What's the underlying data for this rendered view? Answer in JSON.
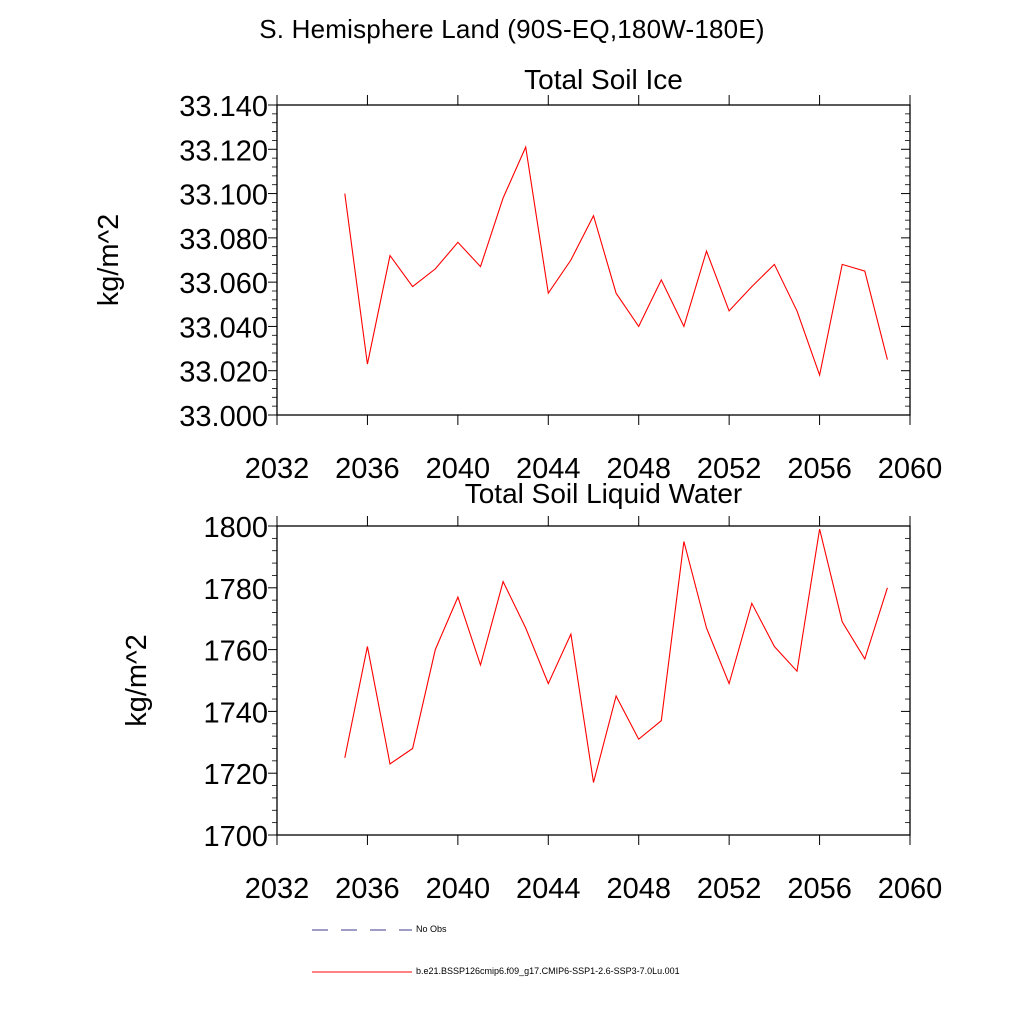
{
  "header": {
    "title": "S. Hemisphere Land (90S-EQ,180W-180E)"
  },
  "colors": {
    "series": "#ff0000",
    "obs": "#3b3b8f",
    "axis": "#000000"
  },
  "chart_data": [
    {
      "type": "line",
      "title": "Total Soil Ice",
      "ylabel": "kg/m^2",
      "xlabel": "",
      "xlim": [
        2032,
        2060
      ],
      "ylim": [
        33.0,
        33.14
      ],
      "xticks": [
        2032,
        2036,
        2040,
        2044,
        2048,
        2052,
        2056,
        2060
      ],
      "yticks": [
        33.0,
        33.02,
        33.04,
        33.06,
        33.08,
        33.1,
        33.12,
        33.14
      ],
      "ytick_labels": [
        "33.000",
        "33.020",
        "33.040",
        "33.060",
        "33.080",
        "33.100",
        "33.120",
        "33.140"
      ],
      "grid": false,
      "series": [
        {
          "name": "b.e21.BSSP126cmip6.f09_g17.CMIP6-SSP1-2.6-SSP3-7.0Lu.001",
          "color": "#ff0000",
          "x": [
            2035,
            2036,
            2037,
            2038,
            2039,
            2040,
            2041,
            2042,
            2043,
            2044,
            2045,
            2046,
            2047,
            2048,
            2049,
            2050,
            2051,
            2052,
            2053,
            2054,
            2055,
            2056,
            2057,
            2058,
            2059
          ],
          "values": [
            33.1,
            33.023,
            33.072,
            33.058,
            33.066,
            33.078,
            33.067,
            33.098,
            33.121,
            33.055,
            33.07,
            33.09,
            33.055,
            33.04,
            33.061,
            33.04,
            33.074,
            33.047,
            33.058,
            33.068,
            33.047,
            33.018,
            33.068,
            33.065,
            33.025
          ]
        }
      ]
    },
    {
      "type": "line",
      "title": "Total Soil Liquid Water",
      "ylabel": "kg/m^2",
      "xlabel": "",
      "xlim": [
        2032,
        2060
      ],
      "ylim": [
        1700,
        1800
      ],
      "xticks": [
        2032,
        2036,
        2040,
        2044,
        2048,
        2052,
        2056,
        2060
      ],
      "yticks": [
        1700,
        1720,
        1740,
        1760,
        1780,
        1800
      ],
      "ytick_labels": [
        "1700",
        "1720",
        "1740",
        "1760",
        "1780",
        "1800"
      ],
      "grid": false,
      "series": [
        {
          "name": "b.e21.BSSP126cmip6.f09_g17.CMIP6-SSP1-2.6-SSP3-7.0Lu.001",
          "color": "#ff0000",
          "x": [
            2035,
            2036,
            2037,
            2038,
            2039,
            2040,
            2041,
            2042,
            2043,
            2044,
            2045,
            2046,
            2047,
            2048,
            2049,
            2050,
            2051,
            2052,
            2053,
            2054,
            2055,
            2056,
            2057,
            2058,
            2059
          ],
          "values": [
            1725,
            1761,
            1723,
            1728,
            1760,
            1777,
            1755,
            1782,
            1767,
            1749,
            1765,
            1717,
            1745,
            1731,
            1737,
            1795,
            1767,
            1749,
            1775,
            1761,
            1753,
            1799,
            1769,
            1757,
            1780
          ]
        }
      ]
    }
  ],
  "legend": [
    {
      "label": "No Obs",
      "style": "dashed",
      "color": "#3b3b8f"
    },
    {
      "label": "b.e21.BSSP126cmip6.f09_g17.CMIP6-SSP1-2.6-SSP3-7.0Lu.001",
      "style": "solid",
      "color": "#ff0000"
    }
  ]
}
